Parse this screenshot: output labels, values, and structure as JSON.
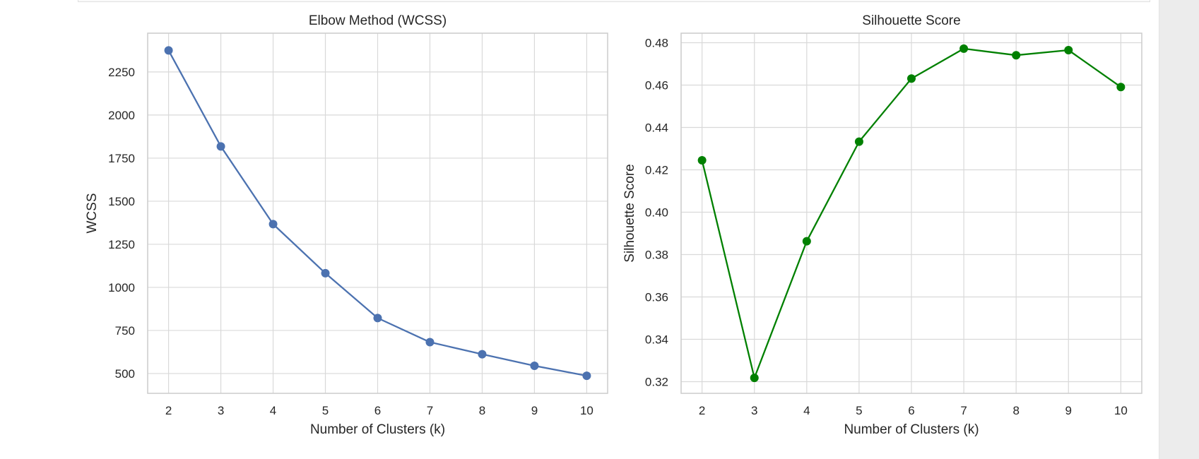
{
  "chart_data": [
    {
      "type": "line",
      "title": "Elbow Method (WCSS)",
      "xlabel": "Number of Clusters (k)",
      "ylabel": "WCSS",
      "x": [
        2,
        3,
        4,
        5,
        6,
        7,
        8,
        9,
        10
      ],
      "series": [
        {
          "values": [
            2375,
            1818,
            1367,
            1082,
            822,
            682,
            612,
            545,
            487
          ],
          "color": "#4c72b0"
        }
      ],
      "xlim": [
        1.6,
        10.4
      ],
      "ylim": [
        385,
        2475
      ],
      "xticks": [
        "2",
        "3",
        "4",
        "5",
        "6",
        "7",
        "8",
        "9",
        "10"
      ],
      "yticks": [
        "500",
        "750",
        "1000",
        "1250",
        "1500",
        "1750",
        "2000",
        "2250"
      ],
      "ytick_values": [
        500,
        750,
        1000,
        1250,
        1500,
        1750,
        2000,
        2250
      ],
      "grid": true,
      "marker": "circle"
    },
    {
      "type": "line",
      "title": "Silhouette Score",
      "xlabel": "Number of Clusters (k)",
      "ylabel": "Silhouette Score",
      "x": [
        2,
        3,
        4,
        5,
        6,
        7,
        8,
        9,
        10
      ],
      "series": [
        {
          "values": [
            0.4245,
            0.3218,
            0.3863,
            0.4333,
            0.4631,
            0.4772,
            0.4741,
            0.4765,
            0.4591
          ],
          "color": "#008000"
        }
      ],
      "xlim": [
        1.6,
        10.4
      ],
      "ylim": [
        0.3145,
        0.4845
      ],
      "xticks": [
        "2",
        "3",
        "4",
        "5",
        "6",
        "7",
        "8",
        "9",
        "10"
      ],
      "yticks": [
        "0.32",
        "0.34",
        "0.36",
        "0.38",
        "0.40",
        "0.42",
        "0.44",
        "0.46",
        "0.48"
      ],
      "ytick_values": [
        0.32,
        0.34,
        0.36,
        0.38,
        0.4,
        0.42,
        0.44,
        0.46,
        0.48
      ],
      "grid": true,
      "marker": "circle"
    }
  ]
}
